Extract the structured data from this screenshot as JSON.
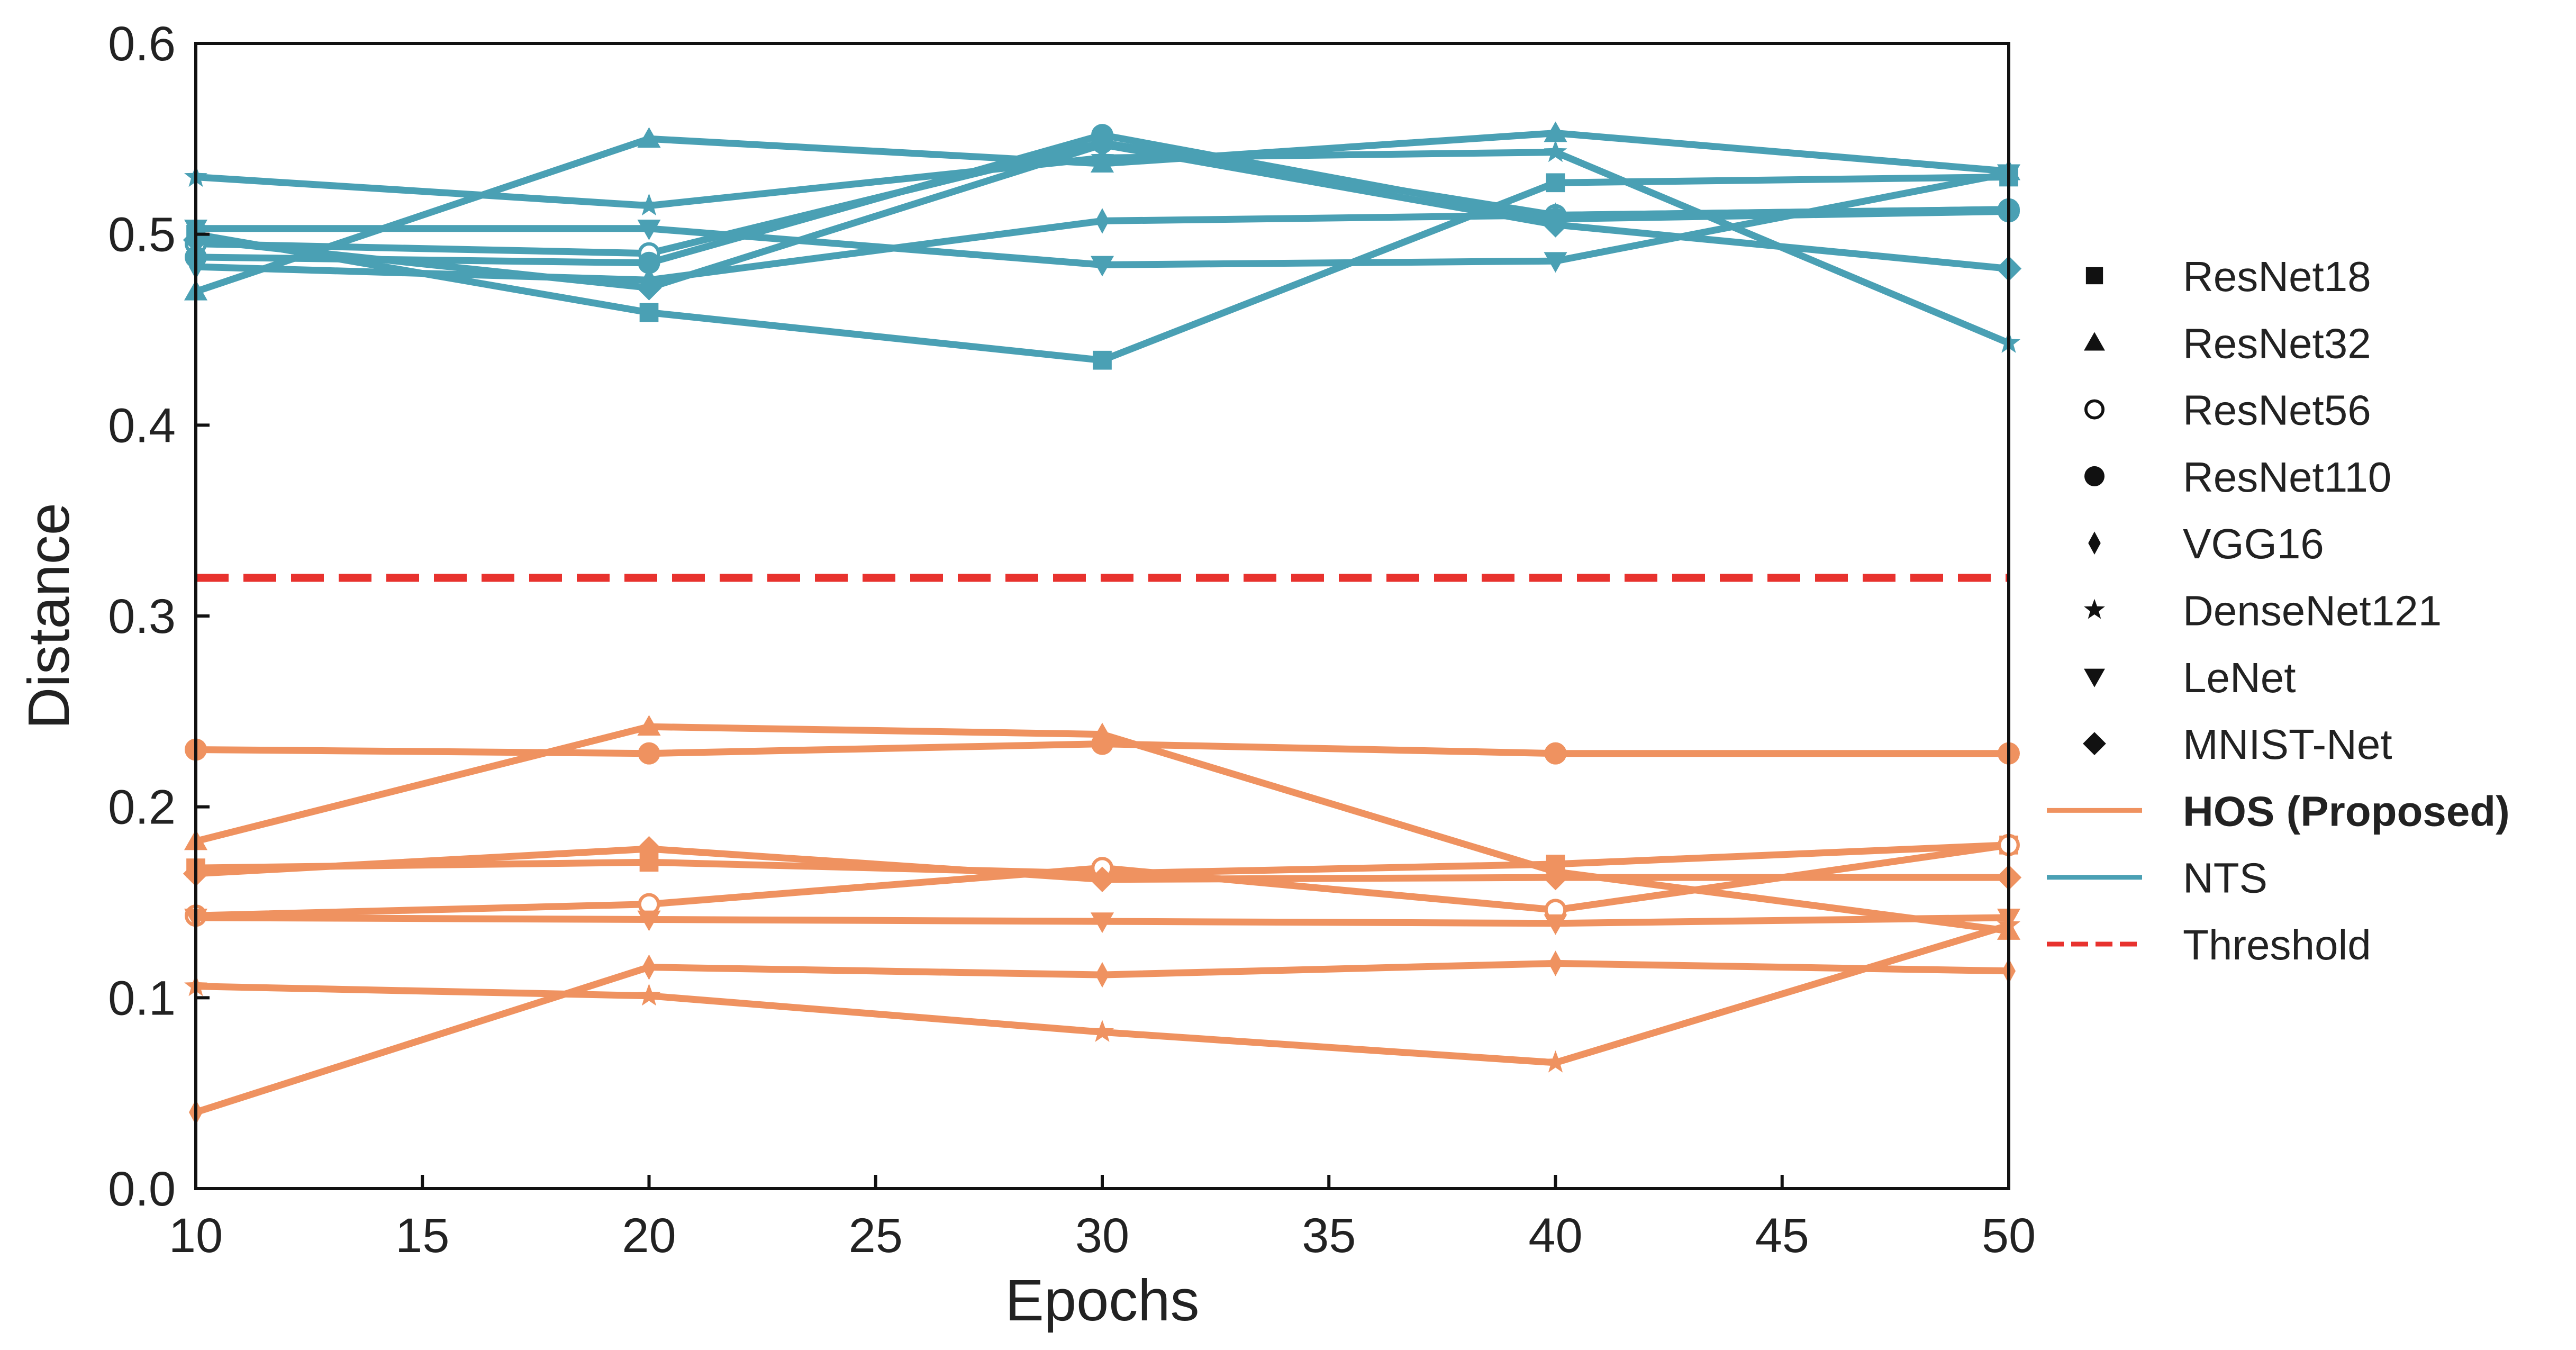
{
  "chart_data": {
    "type": "line",
    "title": "",
    "xlabel": "Epochs",
    "ylabel": "Distance",
    "xlim": [
      10,
      50
    ],
    "ylim": [
      0.0,
      0.6
    ],
    "grid": false,
    "legend_position": "right",
    "x": [
      10,
      20,
      30,
      40,
      50
    ],
    "x_ticks": [
      "10",
      "15",
      "20",
      "25",
      "30",
      "35",
      "40",
      "45",
      "50"
    ],
    "y_ticks": [
      "0.0",
      "0.1",
      "0.2",
      "0.3",
      "0.4",
      "0.5",
      "0.6"
    ],
    "threshold": {
      "name": "Threshold",
      "value": 0.32,
      "color": "#e8322e",
      "style": "dashed"
    },
    "colors": {
      "HOS (Proposed)": "#ef9260",
      "NTS": "#4aa0b4"
    },
    "series": [
      {
        "method": "NTS",
        "model": "ResNet18",
        "marker": "square",
        "values": [
          0.5,
          0.459,
          0.434,
          0.527,
          0.53
        ]
      },
      {
        "method": "NTS",
        "model": "ResNet32",
        "marker": "triangle",
        "values": [
          0.47,
          0.55,
          0.537,
          0.553,
          0.533
        ]
      },
      {
        "method": "NTS",
        "model": "ResNet56",
        "marker": "circle-open",
        "values": [
          0.495,
          0.49,
          0.548,
          0.51,
          0.513
        ]
      },
      {
        "method": "NTS",
        "model": "ResNet110",
        "marker": "circle",
        "values": [
          0.488,
          0.485,
          0.552,
          0.508,
          0.512
        ]
      },
      {
        "method": "NTS",
        "model": "VGG16",
        "marker": "diamond-thin",
        "values": [
          0.483,
          0.476,
          0.507,
          0.51,
          0.513
        ]
      },
      {
        "method": "NTS",
        "model": "DenseNet121",
        "marker": "star",
        "values": [
          0.53,
          0.515,
          0.54,
          0.543,
          0.443
        ]
      },
      {
        "method": "NTS",
        "model": "LeNet",
        "marker": "triangle-down",
        "values": [
          0.503,
          0.503,
          0.484,
          0.486,
          0.532
        ]
      },
      {
        "method": "NTS",
        "model": "MNIST-Net",
        "marker": "diamond",
        "values": [
          0.497,
          0.472,
          0.547,
          0.505,
          0.482
        ]
      },
      {
        "method": "HOS (Proposed)",
        "model": "ResNet18",
        "marker": "square",
        "values": [
          0.168,
          0.171,
          0.165,
          0.17,
          0.18
        ]
      },
      {
        "method": "HOS (Proposed)",
        "model": "ResNet32",
        "marker": "triangle",
        "values": [
          0.182,
          0.242,
          0.238,
          0.166,
          0.135
        ]
      },
      {
        "method": "HOS (Proposed)",
        "model": "ResNet56",
        "marker": "circle-open",
        "values": [
          0.143,
          0.149,
          0.168,
          0.146,
          0.18
        ]
      },
      {
        "method": "HOS (Proposed)",
        "model": "ResNet110",
        "marker": "circle",
        "values": [
          0.23,
          0.228,
          0.233,
          0.228,
          0.228
        ]
      },
      {
        "method": "HOS (Proposed)",
        "model": "VGG16",
        "marker": "diamond-thin",
        "values": [
          0.04,
          0.116,
          0.112,
          0.118,
          0.114
        ]
      },
      {
        "method": "HOS (Proposed)",
        "model": "DenseNet121",
        "marker": "star",
        "values": [
          0.106,
          0.101,
          0.082,
          0.066,
          0.138
        ]
      },
      {
        "method": "HOS (Proposed)",
        "model": "LeNet",
        "marker": "triangle-down",
        "values": [
          0.142,
          0.141,
          0.14,
          0.139,
          0.142
        ]
      },
      {
        "method": "HOS (Proposed)",
        "model": "MNIST-Net",
        "marker": "diamond",
        "values": [
          0.165,
          0.178,
          0.162,
          0.163,
          0.163
        ]
      }
    ],
    "legend": [
      {
        "label": "ResNet18",
        "kind": "marker",
        "marker": "square",
        "bold": false
      },
      {
        "label": "ResNet32",
        "kind": "marker",
        "marker": "triangle",
        "bold": false
      },
      {
        "label": "ResNet56",
        "kind": "marker",
        "marker": "circle-open",
        "bold": false
      },
      {
        "label": "ResNet110",
        "kind": "marker",
        "marker": "circle",
        "bold": false
      },
      {
        "label": "VGG16",
        "kind": "marker",
        "marker": "diamond-thin",
        "bold": false
      },
      {
        "label": "DenseNet121",
        "kind": "marker",
        "marker": "star",
        "bold": false
      },
      {
        "label": "LeNet",
        "kind": "marker",
        "marker": "triangle-down",
        "bold": false
      },
      {
        "label": "MNIST-Net",
        "kind": "marker",
        "marker": "diamond",
        "bold": false
      },
      {
        "label": "HOS (Proposed)",
        "kind": "line",
        "color": "#ef9260",
        "bold": true
      },
      {
        "label": "NTS",
        "kind": "line",
        "color": "#4aa0b4",
        "bold": false
      },
      {
        "label": "Threshold",
        "kind": "dashed",
        "color": "#e8322e",
        "bold": false
      }
    ]
  }
}
